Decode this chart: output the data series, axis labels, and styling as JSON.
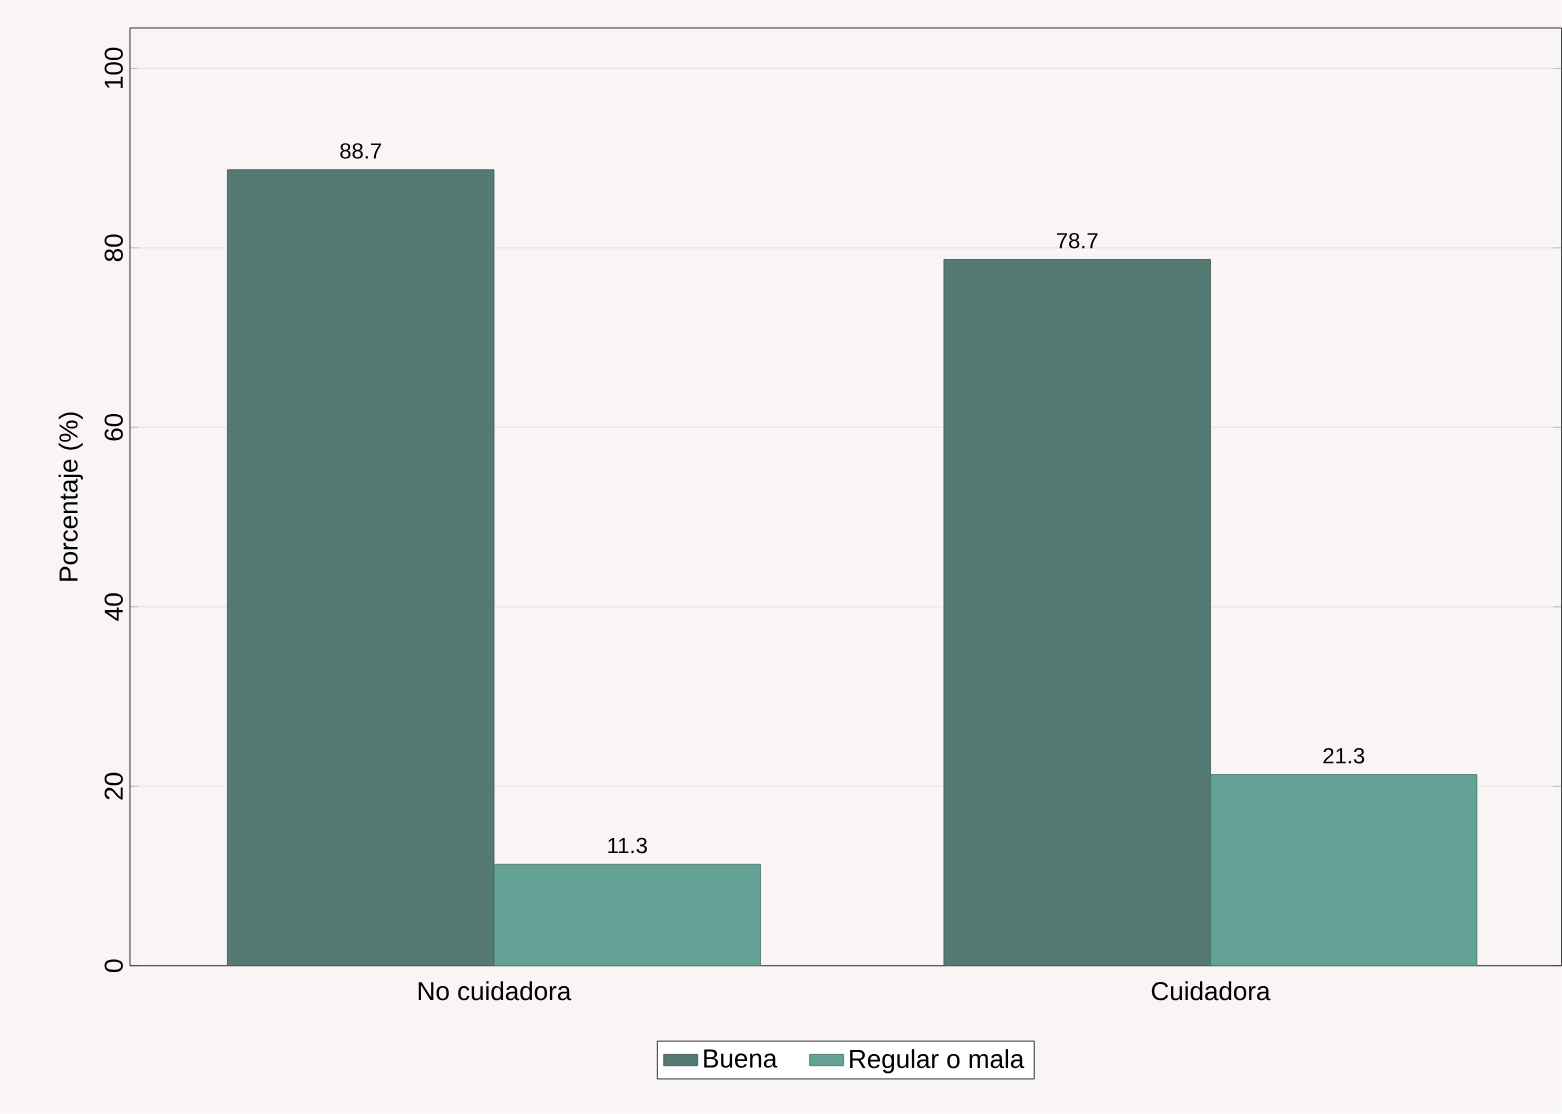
{
  "chart_data": {
    "type": "bar",
    "ylabel": "Porcentaje (%)",
    "categories": [
      "No cuidadora",
      "Cuidadora"
    ],
    "series": [
      {
        "name": "Buena",
        "color": "#557a74",
        "values": [
          88.7,
          78.7
        ]
      },
      {
        "name": "Regular o mala",
        "color": "#64a296",
        "values": [
          11.3,
          21.3
        ]
      }
    ],
    "ylim": [
      0,
      104.5
    ],
    "yticks": [
      0,
      20,
      40,
      60,
      80,
      100
    ],
    "grid": "y",
    "legend": "bottom",
    "data_labels": true
  }
}
